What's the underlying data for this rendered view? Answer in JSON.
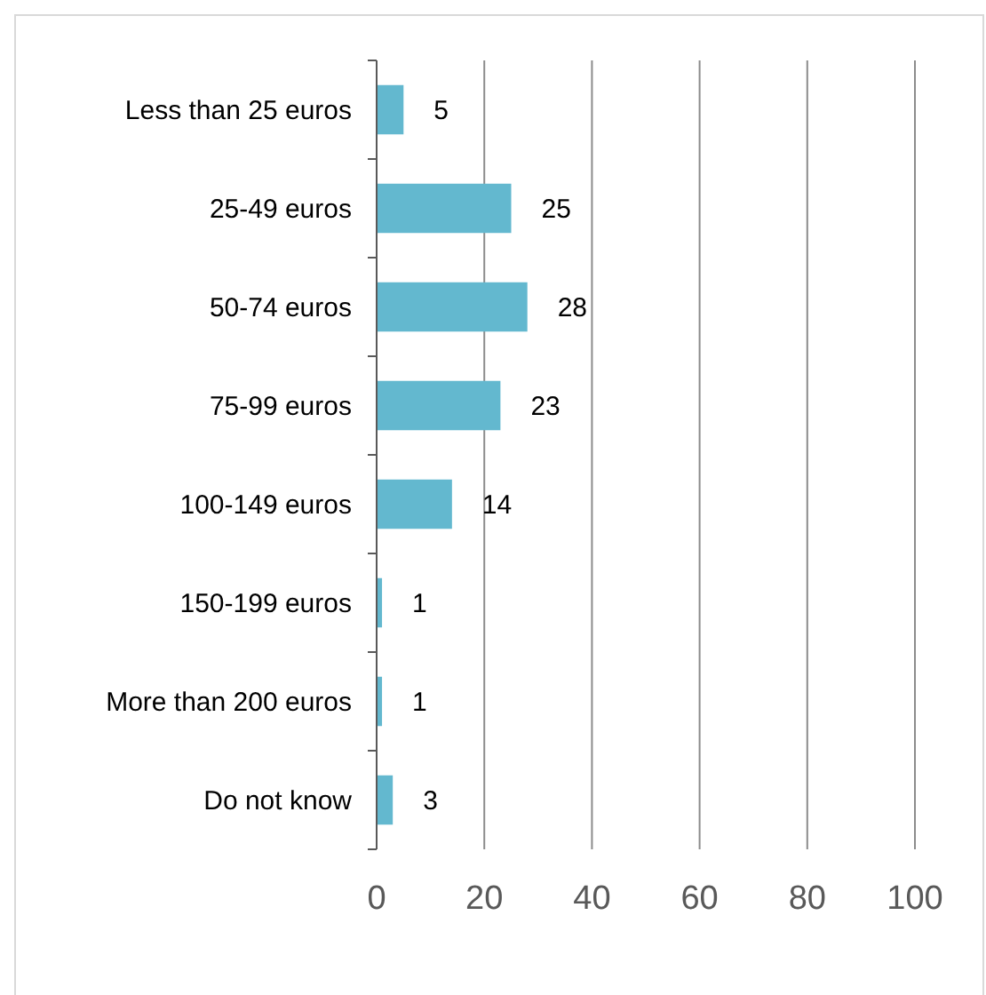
{
  "chart_data": {
    "type": "bar",
    "orientation": "horizontal",
    "categories": [
      "Less than 25 euros",
      "25-49 euros",
      "50-74 euros",
      "75-99 euros",
      "100-149 euros",
      "150-199 euros",
      "More than 200 euros",
      "Do not know"
    ],
    "values": [
      5,
      25,
      28,
      23,
      14,
      1,
      1,
      3
    ],
    "color": "#63b8cf",
    "xlim": [
      0,
      100
    ],
    "xticks": [
      0,
      20,
      40,
      60,
      80,
      100
    ],
    "grid": "x",
    "data_labels": true
  }
}
